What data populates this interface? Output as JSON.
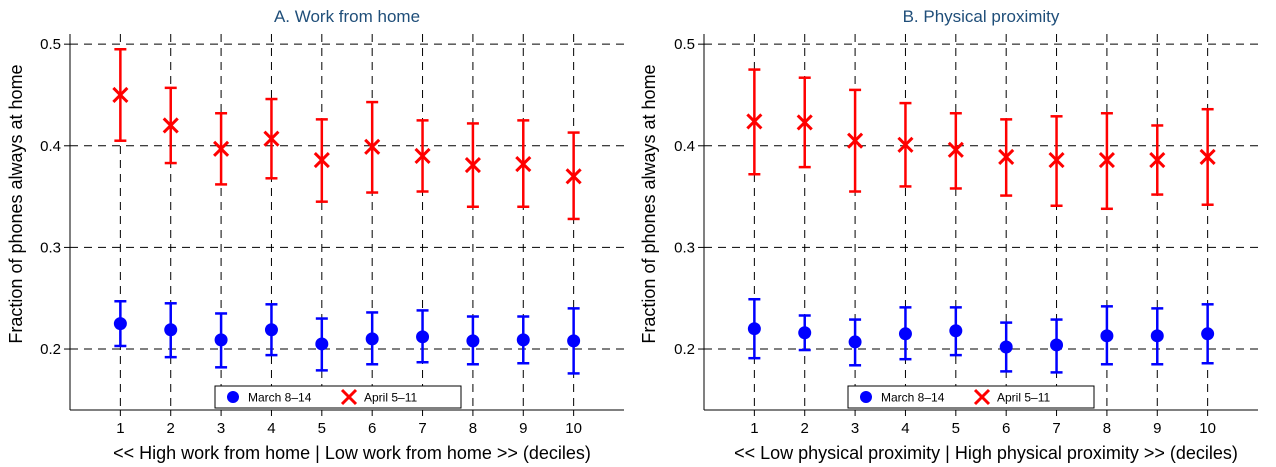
{
  "chart_data": [
    {
      "type": "scatter",
      "title": "A. Work from home",
      "xlabel": "<< High work from home | Low work from home >> (deciles)",
      "ylabel": "Fraction of phones always at home",
      "x": [
        1,
        2,
        3,
        4,
        5,
        6,
        7,
        8,
        9,
        10
      ],
      "xticks": [
        "1",
        "2",
        "3",
        "4",
        "5",
        "6",
        "7",
        "8",
        "9",
        "10"
      ],
      "yticks": [
        "0.2",
        "0.3",
        "0.4",
        "0.5"
      ],
      "xlim": [
        0,
        11
      ],
      "ylim": [
        0.14,
        0.51
      ],
      "grid": true,
      "legend_position": "bottom-center",
      "series": [
        {
          "name": "March 8–14",
          "marker": "circle",
          "color": "#0000ff",
          "values": [
            0.225,
            0.219,
            0.209,
            0.219,
            0.205,
            0.21,
            0.212,
            0.208,
            0.209,
            0.208
          ],
          "lower": [
            0.203,
            0.192,
            0.182,
            0.194,
            0.179,
            0.185,
            0.187,
            0.185,
            0.186,
            0.176
          ],
          "upper": [
            0.247,
            0.245,
            0.235,
            0.244,
            0.23,
            0.236,
            0.238,
            0.232,
            0.232,
            0.24
          ]
        },
        {
          "name": "April 5–11",
          "marker": "x",
          "color": "#ff0000",
          "values": [
            0.45,
            0.42,
            0.397,
            0.407,
            0.386,
            0.399,
            0.39,
            0.381,
            0.382,
            0.37
          ],
          "lower": [
            0.405,
            0.383,
            0.362,
            0.368,
            0.345,
            0.354,
            0.355,
            0.34,
            0.34,
            0.328
          ],
          "upper": [
            0.495,
            0.457,
            0.432,
            0.446,
            0.426,
            0.443,
            0.425,
            0.422,
            0.425,
            0.413
          ]
        }
      ]
    },
    {
      "type": "scatter",
      "title": "B. Physical proximity",
      "xlabel": "<< Low physical proximity | High physical proximity >> (deciles)",
      "ylabel": "Fraction of phones always at home",
      "x": [
        1,
        2,
        3,
        4,
        5,
        6,
        7,
        8,
        9,
        10
      ],
      "xticks": [
        "1",
        "2",
        "3",
        "4",
        "5",
        "6",
        "7",
        "8",
        "9",
        "10"
      ],
      "yticks": [
        "0.2",
        "0.3",
        "0.4",
        "0.5"
      ],
      "xlim": [
        0,
        11
      ],
      "ylim": [
        0.14,
        0.51
      ],
      "grid": true,
      "legend_position": "bottom-center",
      "series": [
        {
          "name": "March 8–14",
          "marker": "circle",
          "color": "#0000ff",
          "values": [
            0.22,
            0.216,
            0.207,
            0.215,
            0.218,
            0.202,
            0.204,
            0.213,
            0.213,
            0.215
          ],
          "lower": [
            0.191,
            0.199,
            0.184,
            0.19,
            0.194,
            0.178,
            0.177,
            0.185,
            0.185,
            0.186
          ],
          "upper": [
            0.249,
            0.233,
            0.229,
            0.241,
            0.241,
            0.226,
            0.229,
            0.242,
            0.24,
            0.244
          ]
        },
        {
          "name": "April 5–11",
          "marker": "x",
          "color": "#ff0000",
          "values": [
            0.424,
            0.423,
            0.405,
            0.401,
            0.396,
            0.389,
            0.386,
            0.386,
            0.386,
            0.389
          ],
          "lower": [
            0.372,
            0.379,
            0.355,
            0.36,
            0.358,
            0.351,
            0.341,
            0.338,
            0.352,
            0.342
          ],
          "upper": [
            0.475,
            0.467,
            0.455,
            0.442,
            0.432,
            0.426,
            0.429,
            0.432,
            0.42,
            0.436
          ]
        }
      ]
    }
  ]
}
